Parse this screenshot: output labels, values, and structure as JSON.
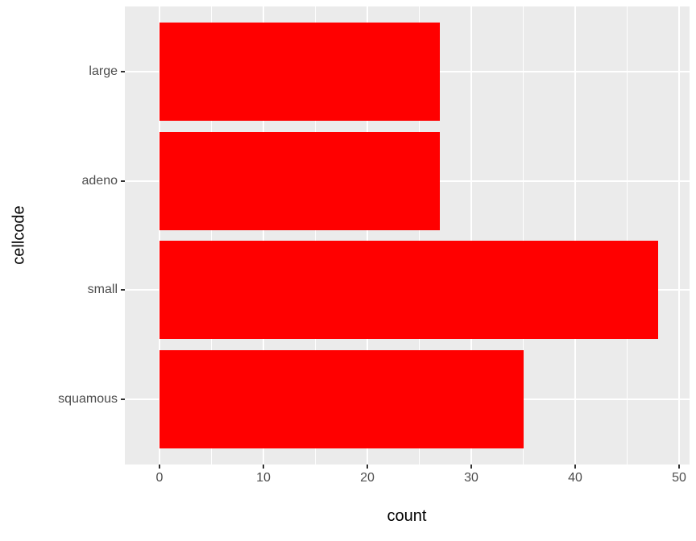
{
  "chart_data": {
    "type": "bar",
    "orientation": "horizontal",
    "title": "",
    "xlabel": "count",
    "ylabel": "cellcode",
    "categories": [
      "large",
      "adeno",
      "small",
      "squamous"
    ],
    "values": [
      27,
      27,
      48,
      35
    ],
    "bar_color": "#FF0000",
    "xlim": [
      0,
      50
    ],
    "x_major_ticks": [
      0,
      10,
      20,
      30,
      40,
      50
    ],
    "x_minor_ticks": [
      5,
      15,
      25,
      35,
      45
    ],
    "panel_background": "#EBEBEB",
    "grid_color": "#FFFFFF",
    "tick_label_color": "#4D4D4D",
    "axis_title_color": "#000000",
    "grid": "on",
    "legend": "none"
  }
}
